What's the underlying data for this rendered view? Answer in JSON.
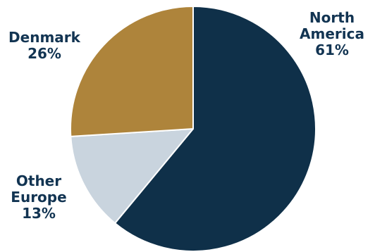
{
  "chart_data": {
    "type": "pie",
    "slices": [
      {
        "label_lines": [
          "North",
          "America"
        ],
        "value": 61,
        "value_label": "61%",
        "color": "#0f3049"
      },
      {
        "label_lines": [
          "Other",
          "Europe"
        ],
        "value": 13,
        "value_label": "13%",
        "color": "#c9d4de"
      },
      {
        "label_lines": [
          "Denmark"
        ],
        "value": 26,
        "value_label": "26%",
        "color": "#ae843b"
      }
    ],
    "label_color": "#123452"
  }
}
